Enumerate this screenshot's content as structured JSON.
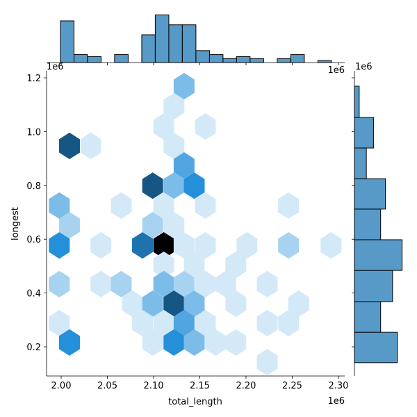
{
  "chart_data": {
    "type": "hexbin",
    "x_label": "total_length",
    "y_label": "longest",
    "x_offset": "1e6",
    "y_offset": "1e6",
    "color": "#1f77b4",
    "x": [
      2.133,
      2.122,
      2.111,
      2.156,
      2.009,
      2.032,
      2.122,
      2.133,
      2.099,
      2.122,
      2.144,
      1.998,
      2.065,
      2.111,
      2.156,
      2.246,
      2.009,
      2.099,
      2.122,
      1.998,
      2.043,
      2.088,
      2.111,
      2.133,
      2.156,
      2.201,
      2.246,
      2.292,
      2.111,
      2.144,
      2.189,
      1.998,
      2.043,
      2.065,
      2.111,
      2.133,
      2.156,
      2.178,
      2.223,
      2.077,
      2.099,
      2.122,
      2.144,
      2.189,
      2.257,
      1.998,
      2.088,
      2.111,
      2.133,
      2.156,
      2.223,
      2.246,
      2.009,
      2.099,
      2.122,
      2.144,
      2.167,
      2.189,
      2.223
    ],
    "y": [
      1.169,
      1.094,
      1.019,
      1.019,
      0.947,
      0.947,
      0.947,
      0.874,
      0.799,
      0.799,
      0.799,
      0.725,
      0.725,
      0.725,
      0.725,
      0.725,
      0.652,
      0.652,
      0.652,
      0.577,
      0.577,
      0.577,
      0.577,
      0.577,
      0.577,
      0.577,
      0.577,
      0.577,
      0.505,
      0.505,
      0.505,
      0.433,
      0.433,
      0.433,
      0.433,
      0.433,
      0.433,
      0.433,
      0.433,
      0.36,
      0.36,
      0.36,
      0.36,
      0.36,
      0.36,
      0.288,
      0.288,
      0.288,
      0.288,
      0.288,
      0.288,
      0.288,
      0.216,
      0.216,
      0.216,
      0.216,
      0.216,
      0.216,
      0.143
    ],
    "values": [
      3,
      1,
      1,
      1,
      7,
      1,
      1,
      4,
      7,
      3,
      5,
      3,
      1,
      1,
      1,
      1,
      2,
      2,
      1,
      5,
      1,
      6,
      10,
      1,
      1,
      1,
      2,
      1,
      1,
      1,
      1,
      2,
      1,
      2,
      3,
      2,
      1,
      1,
      1,
      1,
      3,
      7,
      3,
      1,
      1,
      1,
      1,
      1,
      4,
      1,
      1,
      1,
      5,
      1,
      5,
      3,
      1,
      1,
      1
    ],
    "xlim": [
      1.9842,
      2.3068
    ],
    "ylim": [
      0.0915,
      1.2258
    ],
    "xticks": [
      {
        "value": 2.0,
        "label": "2.00"
      },
      {
        "value": 2.05,
        "label": "2.05"
      },
      {
        "value": 2.1,
        "label": "2.10"
      },
      {
        "value": 2.15,
        "label": "2.15"
      },
      {
        "value": 2.2,
        "label": "2.20"
      },
      {
        "value": 2.25,
        "label": "2.25"
      },
      {
        "value": 2.3,
        "label": "2.30"
      }
    ],
    "yticks": [
      0.2,
      0.4,
      0.6,
      0.8,
      {
        "value": 1.0,
        "label": "1.0"
      },
      1.2
    ],
    "marginal_x": {
      "bins": [
        1.9992,
        2.0139,
        2.0285,
        2.0432,
        2.0578,
        2.0725,
        2.0872,
        2.1018,
        2.1165,
        2.1311,
        2.1458,
        2.1605,
        2.1751,
        2.1898,
        2.2044,
        2.2191,
        2.2338,
        2.2484,
        2.2631,
        2.2777,
        2.2924
      ],
      "values": [
        21,
        4,
        3,
        0,
        4,
        0,
        14,
        24,
        19,
        19,
        6,
        4,
        2,
        3,
        2,
        0,
        2,
        4,
        0,
        1
      ]
    },
    "marginal_y": {
      "bins": [
        0.141,
        0.254,
        0.368,
        0.484,
        0.598,
        0.712,
        0.825,
        0.939,
        1.053,
        1.169
      ],
      "values": [
        18,
        11,
        16,
        20,
        11,
        13,
        5,
        8,
        2
      ]
    }
  }
}
